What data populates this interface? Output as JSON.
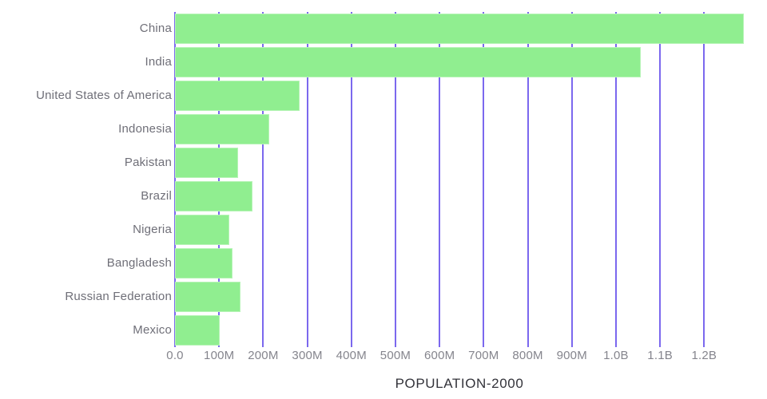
{
  "chart_data": {
    "type": "bar",
    "orientation": "horizontal",
    "title": "",
    "xlabel": "POPULATION-2000",
    "ylabel": "",
    "categories": [
      "China",
      "India",
      "United States of America",
      "Indonesia",
      "Pakistan",
      "Brazil",
      "Nigeria",
      "Bangladesh",
      "Russian Federation",
      "Mexico"
    ],
    "values": [
      1290,
      1057,
      283,
      213,
      144,
      176,
      123,
      130,
      148,
      102
    ],
    "values_unit": "millions of people",
    "xlim": [
      0,
      1290
    ],
    "xticks": {
      "values": [
        0,
        100,
        200,
        300,
        400,
        500,
        600,
        700,
        800,
        900,
        1000,
        1100,
        1200
      ],
      "labels": [
        "0.0",
        "100M",
        "200M",
        "300M",
        "400M",
        "500M",
        "600M",
        "700M",
        "800M",
        "900M",
        "1.0B",
        "1.1B",
        "1.2B"
      ]
    },
    "grid": "vertical",
    "legend": false,
    "colors": {
      "bar_fill": "#90EE90",
      "gridline": "#7B68EE",
      "category_label": "#6f6f78",
      "tick_label": "#85858d",
      "axis_title": "#33333a",
      "background": "#ffffff"
    }
  }
}
